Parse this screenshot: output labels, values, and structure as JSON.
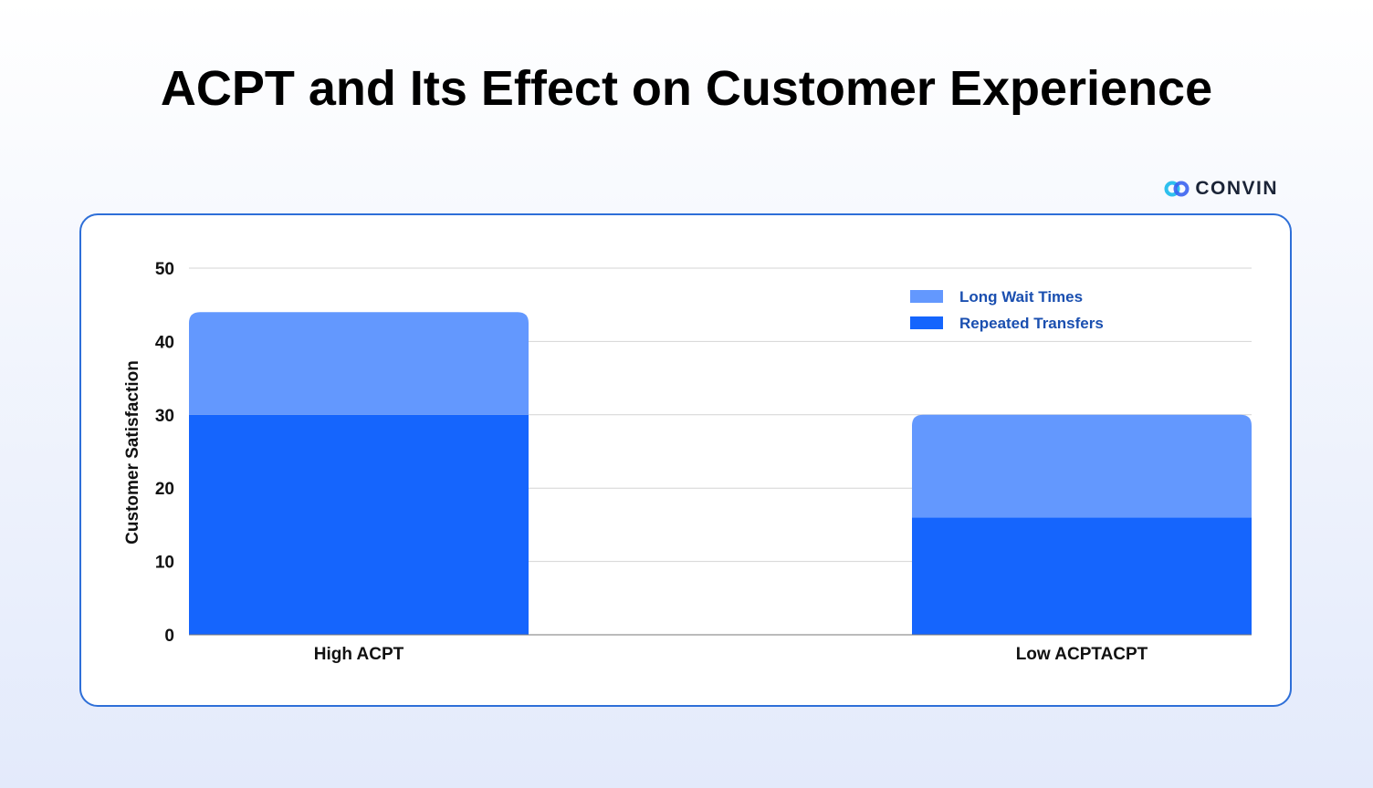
{
  "title": "ACPT and Its Effect on Customer Experience",
  "brand": {
    "name": "CONVIN",
    "icon": "convin-logo-icon"
  },
  "colors": {
    "long_wait": "#6398fe",
    "repeated_transfers": "#1565fd",
    "card_border": "#2e6fd8",
    "legend_text": "#1a4fb0"
  },
  "chart_data": {
    "type": "bar",
    "stacked": true,
    "categories": [
      "High ACPT",
      "Low ACPTACPT"
    ],
    "series": [
      {
        "name": "Repeated Transfers",
        "values": [
          30,
          16
        ],
        "color": "#1565fd"
      },
      {
        "name": "Long Wait Times",
        "values": [
          14,
          14
        ],
        "color": "#6398fe"
      }
    ],
    "xlabel": "",
    "ylabel": "Customer Satisfaction",
    "ylim": [
      0,
      50
    ],
    "yticks": [
      "0",
      "10",
      "20",
      "30",
      "40",
      "50"
    ],
    "grid": true,
    "legend": {
      "position": "top-right",
      "entries": [
        "Long Wait Times",
        "Repeated Transfers"
      ]
    }
  }
}
